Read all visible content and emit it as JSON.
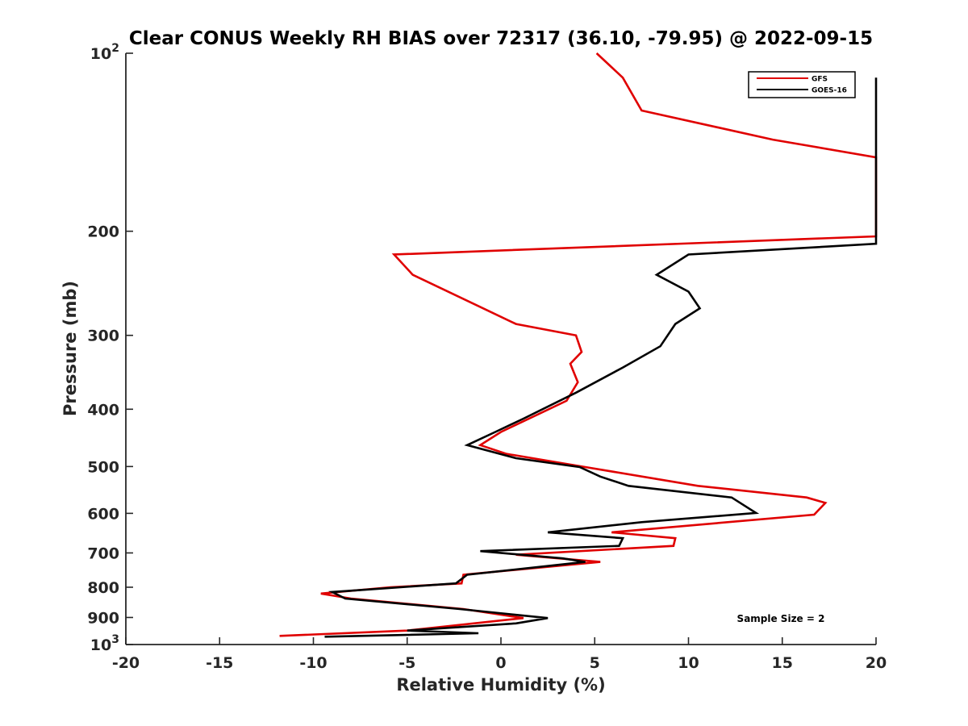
{
  "chart_data": {
    "type": "line",
    "title": "Clear CONUS Weekly RH BIAS over 72317 (36.10, -79.95) @ 2022-09-15",
    "xlabel": "Relative Humidity (%)",
    "ylabel": "Pressure (mb)",
    "xlim": [
      -20,
      20
    ],
    "ylim": [
      100,
      1000
    ],
    "y_scale": "log",
    "y_reversed": true,
    "x_ticks": [
      "-20",
      "-15",
      "-10",
      "-5",
      "0",
      "5",
      "10",
      "15",
      "20"
    ],
    "y_ticks": [
      {
        "value": 100,
        "base": "10",
        "exp": "2"
      },
      {
        "value": 200,
        "label": "200"
      },
      {
        "value": 300,
        "label": "300"
      },
      {
        "value": 400,
        "label": "400"
      },
      {
        "value": 500,
        "label": "500"
      },
      {
        "value": 600,
        "label": "600"
      },
      {
        "value": 700,
        "label": "700"
      },
      {
        "value": 800,
        "label": "800"
      },
      {
        "value": 900,
        "label": "900"
      },
      {
        "value": 1000,
        "base": "10",
        "exp": "3"
      }
    ],
    "legend_position": "top-right",
    "annotation": "Sample Size = 2",
    "grid": false,
    "series": [
      {
        "name": "GFS",
        "color": "#e00000",
        "points": [
          [
            5.1,
            100
          ],
          [
            6.5,
            110
          ],
          [
            7.5,
            125
          ],
          [
            14.5,
            140
          ],
          [
            20.0,
            150
          ],
          [
            20.0,
            204
          ],
          [
            -5.7,
            219
          ],
          [
            -4.7,
            237
          ],
          [
            0.8,
            287
          ],
          [
            4.0,
            300
          ],
          [
            4.3,
            320
          ],
          [
            3.7,
            335
          ],
          [
            4.1,
            360
          ],
          [
            3.5,
            387
          ],
          [
            0,
            437
          ],
          [
            -1.1,
            460
          ],
          [
            0.3,
            476
          ],
          [
            4.5,
            501
          ],
          [
            10.5,
            539
          ],
          [
            16.3,
            564
          ],
          [
            17.3,
            576
          ],
          [
            16.7,
            603
          ],
          [
            5.9,
            646
          ],
          [
            9.3,
            661
          ],
          [
            9.2,
            681
          ],
          [
            0.8,
            705
          ],
          [
            5.3,
            725
          ],
          [
            -2.0,
            762
          ],
          [
            -2.1,
            788
          ],
          [
            -5.9,
            800
          ],
          [
            -9.6,
            820
          ],
          [
            -8.0,
            836
          ],
          [
            -2.0,
            871
          ],
          [
            1.2,
            902
          ],
          [
            -5.0,
            947
          ],
          [
            -11.8,
            967
          ]
        ]
      },
      {
        "name": "GOES-16",
        "color": "#000000",
        "points": [
          [
            20.0,
            110
          ],
          [
            20.0,
            210
          ],
          [
            10.0,
            219
          ],
          [
            8.3,
            237
          ],
          [
            10.0,
            253
          ],
          [
            10.6,
            270
          ],
          [
            9.3,
            287
          ],
          [
            8.5,
            313
          ],
          [
            6.5,
            340
          ],
          [
            4.0,
            375
          ],
          [
            1.2,
            415
          ],
          [
            -0.3,
            437
          ],
          [
            -1.8,
            460
          ],
          [
            0.8,
            484
          ],
          [
            4.2,
            501
          ],
          [
            5.3,
            520
          ],
          [
            6.8,
            539
          ],
          [
            12.3,
            564
          ],
          [
            13.6,
            599
          ],
          [
            7.5,
            621
          ],
          [
            2.5,
            646
          ],
          [
            6.5,
            661
          ],
          [
            6.3,
            681
          ],
          [
            -1.1,
            695
          ],
          [
            3.3,
            715
          ],
          [
            4.5,
            725
          ],
          [
            -1.8,
            762
          ],
          [
            -2.4,
            788
          ],
          [
            -9.0,
            815
          ],
          [
            -8.3,
            836
          ],
          [
            -2.2,
            871
          ],
          [
            2.5,
            902
          ],
          [
            0.8,
            921
          ],
          [
            -5.0,
            947
          ],
          [
            -1.2,
            957
          ],
          [
            -9.4,
            970
          ]
        ]
      }
    ]
  }
}
